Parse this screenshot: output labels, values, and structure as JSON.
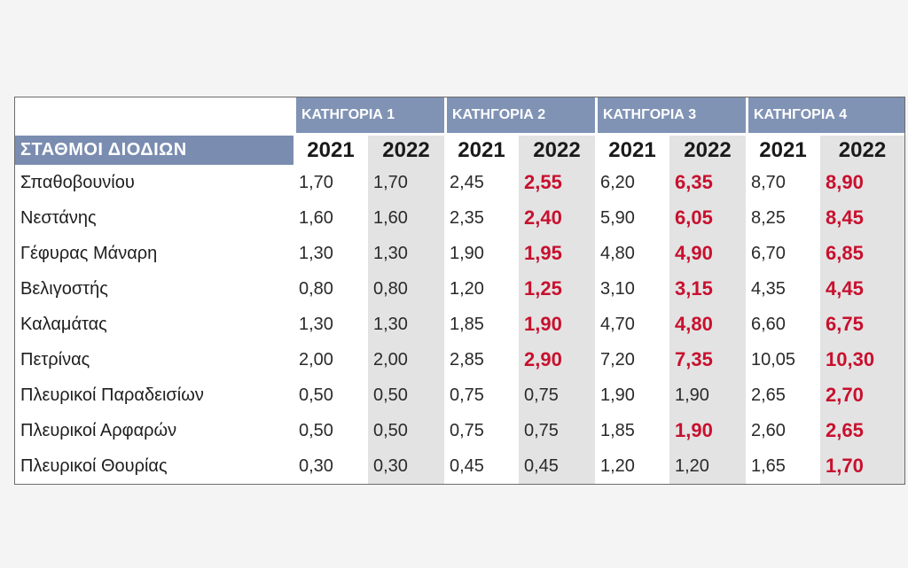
{
  "table": {
    "categories": [
      "ΚΑΤΗΓΟΡΙΑ 1",
      "ΚΑΤΗΓΟΡΙΑ 2",
      "ΚΑΤΗΓΟΡΙΑ 3",
      "ΚΑΤΗΓΟΡΙΑ 4"
    ],
    "stations_header": "ΣΤΑΘΜΟΙ ΔΙΟΔΙΩΝ",
    "years": [
      "2021",
      "2022",
      "2021",
      "2022",
      "2021",
      "2022",
      "2021",
      "2022"
    ],
    "rows": [
      {
        "name": "Σπαθοβουνίου",
        "values": [
          "1,70",
          "1,70",
          "2,45",
          "2,55",
          "6,20",
          "6,35",
          "8,70",
          "8,90"
        ],
        "increased": [
          false,
          false,
          false,
          true,
          false,
          true,
          false,
          true
        ]
      },
      {
        "name": "Νεστάνης",
        "values": [
          "1,60",
          "1,60",
          "2,35",
          "2,40",
          "5,90",
          "6,05",
          "8,25",
          "8,45"
        ],
        "increased": [
          false,
          false,
          false,
          true,
          false,
          true,
          false,
          true
        ]
      },
      {
        "name": "Γέφυρας Μάναρη",
        "values": [
          "1,30",
          "1,30",
          "1,90",
          "1,95",
          "4,80",
          "4,90",
          "6,70",
          "6,85"
        ],
        "increased": [
          false,
          false,
          false,
          true,
          false,
          true,
          false,
          true
        ]
      },
      {
        "name": "Βελιγοστής",
        "values": [
          "0,80",
          "0,80",
          "1,20",
          "1,25",
          "3,10",
          "3,15",
          "4,35",
          "4,45"
        ],
        "increased": [
          false,
          false,
          false,
          true,
          false,
          true,
          false,
          true
        ]
      },
      {
        "name": "Καλαμάτας",
        "values": [
          "1,30",
          "1,30",
          "1,85",
          "1,90",
          "4,70",
          "4,80",
          "6,60",
          "6,75"
        ],
        "increased": [
          false,
          false,
          false,
          true,
          false,
          true,
          false,
          true
        ]
      },
      {
        "name": "Πετρίνας",
        "values": [
          "2,00",
          "2,00",
          "2,85",
          "2,90",
          "7,20",
          "7,35",
          "10,05",
          "10,30"
        ],
        "increased": [
          false,
          false,
          false,
          true,
          false,
          true,
          false,
          true
        ]
      },
      {
        "name": "Πλευρικοί Παραδεισίων",
        "values": [
          "0,50",
          "0,50",
          "0,75",
          "0,75",
          "1,90",
          "1,90",
          "2,65",
          "2,70"
        ],
        "increased": [
          false,
          false,
          false,
          false,
          false,
          false,
          false,
          true
        ]
      },
      {
        "name": "Πλευρικοί Αρφαρών",
        "values": [
          "0,50",
          "0,50",
          "0,75",
          "0,75",
          "1,85",
          "1,90",
          "2,60",
          "2,65"
        ],
        "increased": [
          false,
          false,
          false,
          false,
          false,
          true,
          false,
          true
        ]
      },
      {
        "name": "Πλευρικοί Θουρίας",
        "values": [
          "0,30",
          "0,30",
          "0,45",
          "0,45",
          "1,20",
          "1,20",
          "1,65",
          "1,70"
        ],
        "increased": [
          false,
          false,
          false,
          false,
          false,
          false,
          false,
          true
        ]
      }
    ]
  },
  "colors": {
    "header_bg": "#8093b5",
    "increase_text": "#c8102e",
    "shade_bg": "#e3e3e3"
  }
}
